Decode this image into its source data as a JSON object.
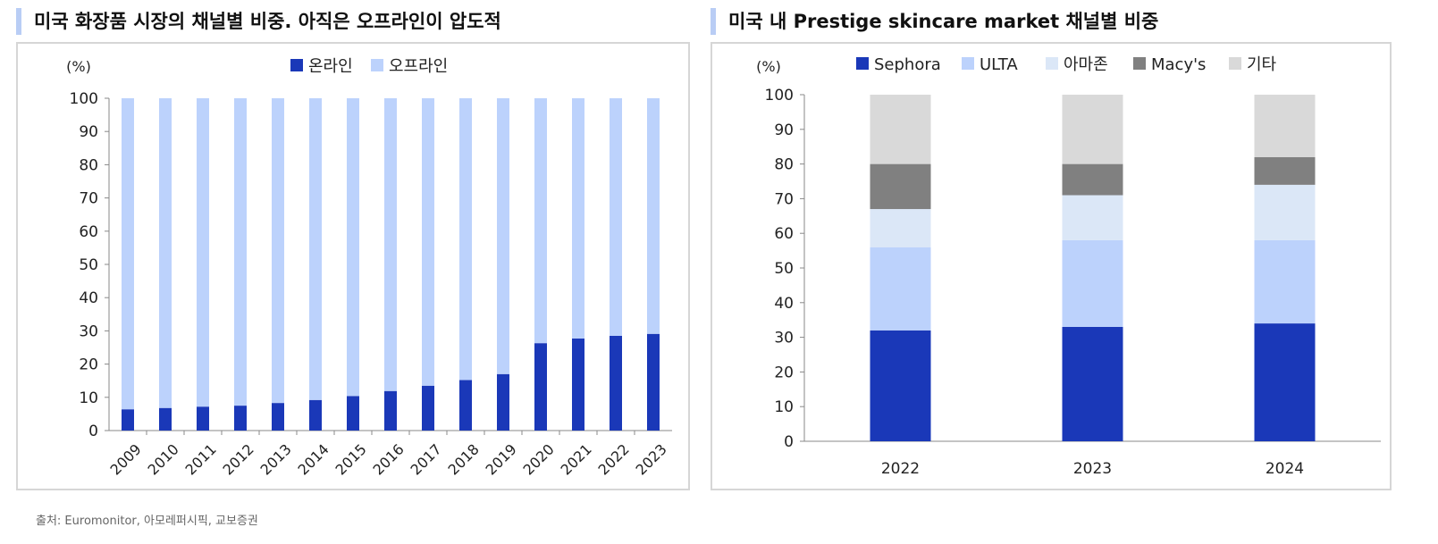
{
  "left_title": "미국 화장품 시장의 채널별 비중. 아직은 오프라인이 압도적",
  "right_title": "미국 내 Prestige skincare market 채널별 비중",
  "source": "출처: Euromonitor, 아모레퍼시픽, 교보증권",
  "chart_data": [
    {
      "type": "bar",
      "stacked": true,
      "title": "미국 화장품 시장의 채널별 비중. 아직은 오프라인이 압도적",
      "ylabel": "(%)",
      "ylim": [
        0,
        100
      ],
      "yticks": [
        0,
        10,
        20,
        30,
        40,
        50,
        60,
        70,
        80,
        90,
        100
      ],
      "categories": [
        "2009",
        "2010",
        "2011",
        "2012",
        "2013",
        "2014",
        "2015",
        "2016",
        "2017",
        "2018",
        "2019",
        "2020",
        "2021",
        "2022",
        "2023"
      ],
      "legend": "top",
      "series": [
        {
          "name": "온라인",
          "color": "#1a38b8",
          "values": [
            6.4,
            6.8,
            7.2,
            7.5,
            8.3,
            9.2,
            10.4,
            11.9,
            13.5,
            15.2,
            17.0,
            26.3,
            27.7,
            28.5,
            29.1
          ]
        },
        {
          "name": "오프라인",
          "color": "#bcd2fc",
          "values": [
            93.6,
            93.2,
            92.8,
            92.5,
            91.7,
            90.8,
            89.6,
            88.1,
            86.5,
            84.8,
            83.0,
            73.7,
            72.3,
            71.5,
            70.9
          ]
        }
      ]
    },
    {
      "type": "bar",
      "stacked": true,
      "title": "미국 내 Prestige skincare market 채널별 비중",
      "ylabel": "(%)",
      "ylim": [
        0,
        100
      ],
      "yticks": [
        0,
        10,
        20,
        30,
        40,
        50,
        60,
        70,
        80,
        90,
        100
      ],
      "categories": [
        "2022",
        "2023",
        "2024"
      ],
      "legend": "top",
      "series": [
        {
          "name": "Sephora",
          "color": "#1a38b8",
          "values": [
            32,
            33,
            34
          ]
        },
        {
          "name": "ULTA",
          "color": "#bcd2fc",
          "values": [
            24,
            25,
            24
          ]
        },
        {
          "name": "아마존",
          "color": "#dbe7f7",
          "values": [
            11,
            13,
            16
          ]
        },
        {
          "name": "Macy's",
          "color": "#808080",
          "values": [
            13,
            9,
            8
          ]
        },
        {
          "name": "기타",
          "color": "#d9d9d9",
          "values": [
            20,
            20,
            18
          ]
        }
      ]
    }
  ]
}
